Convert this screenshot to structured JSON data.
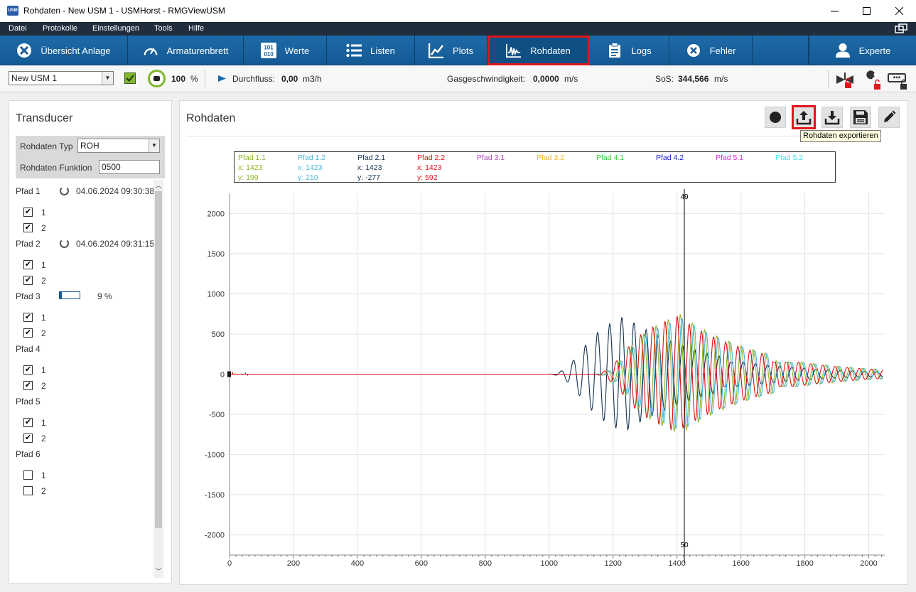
{
  "window": {
    "title": "Rohdaten - New USM 1 - USMHorst - RMGViewUSM",
    "app_icon": "USM",
    "controls": [
      "minimize-icon",
      "maximize-icon",
      "close-icon"
    ]
  },
  "menu": [
    "Datei",
    "Protokolle",
    "Einstellungen",
    "Tools",
    "Hilfe"
  ],
  "nav": [
    {
      "label": "Übersicht Anlage",
      "icon": "overview-icon"
    },
    {
      "label": "Armaturenbrett",
      "icon": "dashboard-icon"
    },
    {
      "label": "Werte",
      "icon": "values-icon",
      "icon_text": "101\n010"
    },
    {
      "label": "Listen",
      "icon": "list-icon"
    },
    {
      "label": "Plots",
      "icon": "plot-icon"
    },
    {
      "label": "Rohdaten",
      "icon": "rawdata-icon",
      "active": true
    },
    {
      "label": "Logs",
      "icon": "clipboard-icon"
    },
    {
      "label": "Fehler",
      "icon": "error-icon"
    },
    {
      "label": "Experte",
      "icon": "user-icon"
    }
  ],
  "status": {
    "device": "New USM 1",
    "quality_value": "100",
    "quality_unit": "%",
    "durchfluss_label": "Durchfluss:",
    "durchfluss_value": "0,00",
    "durchfluss_unit": "m3/h",
    "gas_label": "Gasgeschwindigkeit:",
    "gas_value": "0,0000",
    "gas_unit": "m/s",
    "sos_label": "SoS:",
    "sos_value": "344,566",
    "sos_unit": "m/s"
  },
  "left": {
    "title": "Transducer",
    "typ_label": "Rohdaten Typ",
    "typ_value": "ROH",
    "funktion_label": "Rohdaten Funktion",
    "funktion_value": "0500",
    "paths": [
      {
        "name": "Pfad 1",
        "date": "04.06.2024 09:30:38",
        "sync": true,
        "checks": [
          {
            "label": "1",
            "checked": true
          },
          {
            "label": "2",
            "checked": true
          }
        ]
      },
      {
        "name": "Pfad 2",
        "date": "04.06.2024 09:31:15",
        "sync": true,
        "checks": [
          {
            "label": "1",
            "checked": true
          },
          {
            "label": "2",
            "checked": true
          }
        ]
      },
      {
        "name": "Pfad 3",
        "progress": 0.09,
        "progress_text": "9 %",
        "checks": [
          {
            "label": "1",
            "checked": true
          },
          {
            "label": "2",
            "checked": true
          }
        ]
      },
      {
        "name": "Pfad 4",
        "checks": [
          {
            "label": "1",
            "checked": true
          },
          {
            "label": "2",
            "checked": true
          }
        ]
      },
      {
        "name": "Pfad 5",
        "checks": [
          {
            "label": "1",
            "checked": true
          },
          {
            "label": "2",
            "checked": true
          }
        ]
      },
      {
        "name": "Pfad 6",
        "checks": [
          {
            "label": "1",
            "checked": false
          },
          {
            "label": "2",
            "checked": false
          }
        ]
      }
    ]
  },
  "right": {
    "title": "Rohdaten",
    "toolbar": [
      {
        "icon": "record-icon"
      },
      {
        "icon": "export-icon",
        "highlighted": true
      },
      {
        "icon": "download-icon"
      },
      {
        "icon": "save-icon"
      },
      {
        "icon": "edit-icon"
      }
    ],
    "tooltip": "Rohdaten exportieren"
  },
  "chart_data": {
    "type": "line",
    "legend": [
      {
        "name": "Pfad 1.1",
        "color": "#8fb52a",
        "x": "x: 1423",
        "y": "y: 199"
      },
      {
        "name": "Pfad 1.2",
        "color": "#4cb6d6",
        "x": "x: 1423",
        "y": "y: 210"
      },
      {
        "name": "Pfad 2.1",
        "color": "#14304f",
        "x": "x: 1423",
        "y": "y: -277"
      },
      {
        "name": "Pfad 2.2",
        "color": "#e0101a",
        "x": "x: 1423",
        "y": "y: 592"
      },
      {
        "name": "Pfad 3.1",
        "color": "#b04ab8"
      },
      {
        "name": "Pfad 3.2",
        "color": "#f2b81c"
      },
      {
        "name": "Pfad 4.1",
        "color": "#2fd62f"
      },
      {
        "name": "Pfad 4.2",
        "color": "#1a1ad0"
      },
      {
        "name": "Pfad 5.1",
        "color": "#e02ce0"
      },
      {
        "name": "Pfad 5.2",
        "color": "#3ee0e8"
      }
    ],
    "xlim": [
      0,
      2050
    ],
    "ylim": [
      -2250,
      2250
    ],
    "xticks": [
      0,
      200,
      400,
      600,
      800,
      1000,
      1200,
      1400,
      1600,
      1800,
      2000
    ],
    "yticks": [
      2000,
      1500,
      1000,
      500,
      0,
      -500,
      -1000,
      -1500,
      -2000
    ],
    "cursor_x": 1423,
    "cursor_top_label": "49",
    "cursor_bottom_label": "50",
    "grid": true,
    "signals": [
      {
        "name": "Pfad 2.1",
        "color": "#14304f",
        "onset": 990,
        "peak": 1235,
        "amp": 720,
        "period": 38
      },
      {
        "name": "Pfad 1.1",
        "color": "#8fb52a",
        "onset": 1135,
        "peak": 1410,
        "amp": 740,
        "period": 38
      },
      {
        "name": "Pfad 1.2",
        "color": "#4cb6d6",
        "onset": 1140,
        "peak": 1415,
        "amp": 700,
        "period": 38
      },
      {
        "name": "Pfad 2.2",
        "color": "#e0101a",
        "onset": 1125,
        "peak": 1400,
        "amp": 720,
        "period": 38
      }
    ]
  }
}
